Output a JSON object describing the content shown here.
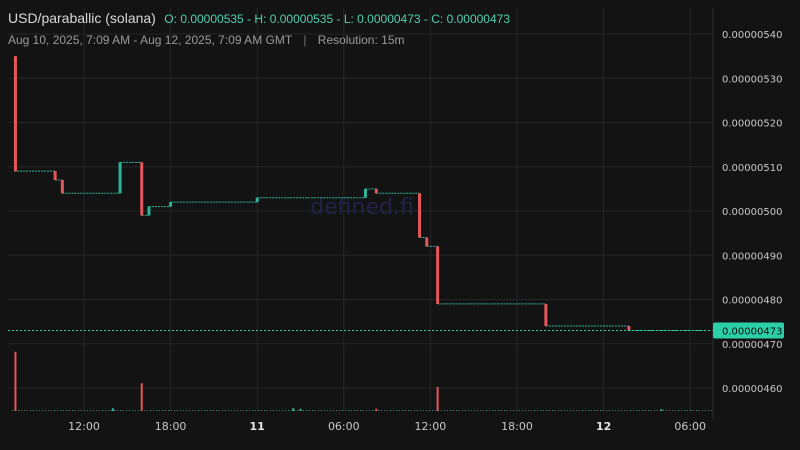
{
  "header": {
    "pair": "USD/paraballic (solana)",
    "ohlc": {
      "o_label": "O:",
      "o": "0.00000535",
      "h_label": "H:",
      "h": "0.00000535",
      "l_label": "L:",
      "l": "0.00000473",
      "c_label": "C:",
      "c": "0.00000473"
    },
    "range": "Aug 10, 2025, 7:09 AM - Aug 12, 2025, 7:09 AM GMT",
    "separator": "|",
    "resolution": "Resolution: 15m"
  },
  "watermark": "defined.fi",
  "colors": {
    "background": "#131313",
    "grid": "#262626",
    "up": "#2bb59a",
    "down": "#e5575b",
    "price_line": "#2bd0a8",
    "price_tag": "#2bd0a8"
  },
  "chart_data": {
    "type": "candlestick",
    "title": "USD/paraballic (solana)",
    "x_range": [
      "2025-08-10 07:09",
      "2025-08-12 07:09"
    ],
    "ylim": [
      4.55e-06,
      5.43e-06
    ],
    "y_ticks": [
      "0.00000540",
      "0.00000530",
      "0.00000520",
      "0.00000510",
      "0.00000500",
      "0.00000490",
      "0.00000480",
      "0.00000470",
      "0.00000460"
    ],
    "x_ticks": [
      {
        "label": "12:00",
        "bold": false
      },
      {
        "label": "18:00",
        "bold": false
      },
      {
        "label": "11",
        "bold": true
      },
      {
        "label": "06:00",
        "bold": false
      },
      {
        "label": "12:00",
        "bold": false
      },
      {
        "label": "18:00",
        "bold": false
      },
      {
        "label": "12",
        "bold": true
      },
      {
        "label": "06:00",
        "bold": false
      }
    ],
    "current_price": "0.00000473",
    "current_price_value": 4.73e-06,
    "segments": [
      {
        "start": "2025-08-10 07:09",
        "end": "2025-08-10 10:00",
        "level": 5.09e-06
      },
      {
        "start": "2025-08-10 10:00",
        "end": "2025-08-10 10:30",
        "level": 5.07e-06
      },
      {
        "start": "2025-08-10 10:30",
        "end": "2025-08-10 14:30",
        "level": 5.04e-06
      },
      {
        "start": "2025-08-10 14:30",
        "end": "2025-08-10 16:00",
        "level": 5.11e-06
      },
      {
        "start": "2025-08-10 16:00",
        "end": "2025-08-10 16:30",
        "level": 4.99e-06
      },
      {
        "start": "2025-08-10 16:30",
        "end": "2025-08-10 18:00",
        "level": 5.01e-06
      },
      {
        "start": "2025-08-10 18:00",
        "end": "2025-08-11 00:00",
        "level": 5.02e-06
      },
      {
        "start": "2025-08-11 00:00",
        "end": "2025-08-11 07:30",
        "level": 5.03e-06
      },
      {
        "start": "2025-08-11 07:30",
        "end": "2025-08-11 08:15",
        "level": 5.05e-06
      },
      {
        "start": "2025-08-11 08:15",
        "end": "2025-08-11 11:15",
        "level": 5.04e-06
      },
      {
        "start": "2025-08-11 11:15",
        "end": "2025-08-11 11:45",
        "level": 4.94e-06
      },
      {
        "start": "2025-08-11 11:45",
        "end": "2025-08-11 12:30",
        "level": 4.92e-06
      },
      {
        "start": "2025-08-11 12:30",
        "end": "2025-08-11 15:00",
        "level": 4.79e-06
      },
      {
        "start": "2025-08-11 15:00",
        "end": "2025-08-11 20:00",
        "level": 4.79e-06
      },
      {
        "start": "2025-08-11 20:00",
        "end": "2025-08-12 01:00",
        "level": 4.74e-06
      },
      {
        "start": "2025-08-12 01:00",
        "end": "2025-08-12 01:45",
        "level": 4.74e-06
      },
      {
        "start": "2025-08-12 01:45",
        "end": "2025-08-12 07:09",
        "level": 4.73e-06
      }
    ],
    "candles": [
      {
        "t": "2025-08-10 07:15",
        "open": 5.35e-06,
        "high": 5.35e-06,
        "low": 5.09e-06,
        "close": 5.09e-06
      },
      {
        "t": "2025-08-10 10:00",
        "open": 5.09e-06,
        "high": 5.09e-06,
        "low": 5.07e-06,
        "close": 5.07e-06
      },
      {
        "t": "2025-08-10 10:30",
        "open": 5.07e-06,
        "high": 5.07e-06,
        "low": 5.04e-06,
        "close": 5.04e-06
      },
      {
        "t": "2025-08-10 14:30",
        "open": 5.04e-06,
        "high": 5.11e-06,
        "low": 5.04e-06,
        "close": 5.11e-06
      },
      {
        "t": "2025-08-10 16:00",
        "open": 5.11e-06,
        "high": 5.11e-06,
        "low": 4.99e-06,
        "close": 4.99e-06
      },
      {
        "t": "2025-08-10 16:30",
        "open": 4.99e-06,
        "high": 5.01e-06,
        "low": 4.99e-06,
        "close": 5.01e-06
      },
      {
        "t": "2025-08-10 18:00",
        "open": 5.01e-06,
        "high": 5.02e-06,
        "low": 5.01e-06,
        "close": 5.02e-06
      },
      {
        "t": "2025-08-11 00:00",
        "open": 5.02e-06,
        "high": 5.03e-06,
        "low": 5.02e-06,
        "close": 5.03e-06
      },
      {
        "t": "2025-08-11 07:30",
        "open": 5.03e-06,
        "high": 5.05e-06,
        "low": 5.03e-06,
        "close": 5.05e-06
      },
      {
        "t": "2025-08-11 08:15",
        "open": 5.05e-06,
        "high": 5.05e-06,
        "low": 5.04e-06,
        "close": 5.04e-06
      },
      {
        "t": "2025-08-11 11:15",
        "open": 5.04e-06,
        "high": 5.04e-06,
        "low": 4.94e-06,
        "close": 4.94e-06
      },
      {
        "t": "2025-08-11 11:45",
        "open": 4.94e-06,
        "high": 4.94e-06,
        "low": 4.92e-06,
        "close": 4.92e-06
      },
      {
        "t": "2025-08-11 12:30",
        "open": 4.92e-06,
        "high": 4.92e-06,
        "low": 4.79e-06,
        "close": 4.79e-06
      },
      {
        "t": "2025-08-11 20:00",
        "open": 4.79e-06,
        "high": 4.79e-06,
        "low": 4.74e-06,
        "close": 4.74e-06
      },
      {
        "t": "2025-08-12 01:45",
        "open": 4.74e-06,
        "high": 4.74e-06,
        "low": 4.73e-06,
        "close": 4.73e-06
      }
    ],
    "volume": [
      {
        "t": "2025-08-10 07:15",
        "v": 32,
        "dir": "down"
      },
      {
        "t": "2025-08-10 16:00",
        "v": 15,
        "dir": "down"
      },
      {
        "t": "2025-08-11 12:30",
        "v": 13,
        "dir": "down"
      },
      {
        "t": "2025-08-10 14:00",
        "v": 1.5,
        "dir": "up"
      },
      {
        "t": "2025-08-11 02:30",
        "v": 1.5,
        "dir": "up"
      },
      {
        "t": "2025-08-11 03:00",
        "v": 1.2,
        "dir": "up"
      },
      {
        "t": "2025-08-11 08:15",
        "v": 1.2,
        "dir": "down"
      },
      {
        "t": "2025-08-12 04:00",
        "v": 1.0,
        "dir": "up"
      }
    ]
  }
}
